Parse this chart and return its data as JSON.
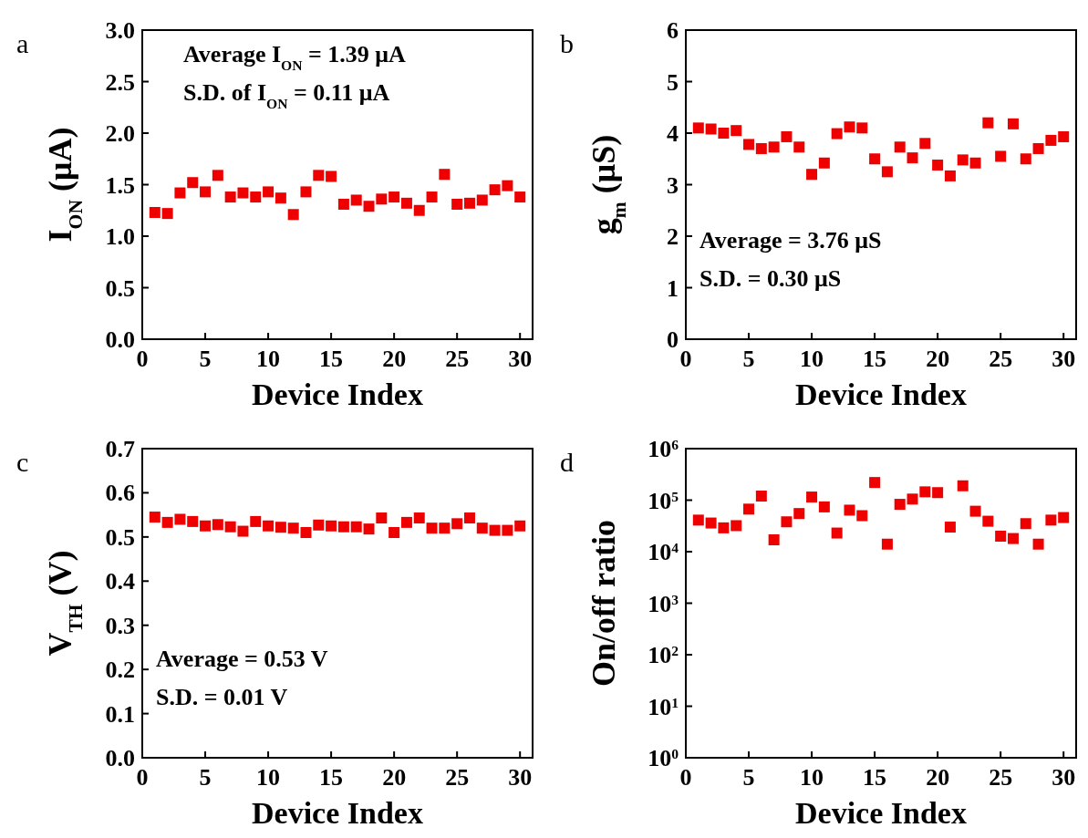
{
  "chart_data": [
    {
      "type": "scatter",
      "title": "a",
      "xlabel": "Device Index",
      "ylabel": "I$_{ON}$ (μA)",
      "marker": "square",
      "xlim": [
        0,
        31
      ],
      "xticks": [
        0,
        5,
        10,
        15,
        20,
        25,
        30
      ],
      "ylim": [
        0,
        3
      ],
      "yticks": [
        {
          "value": 0,
          "label": "0.0"
        },
        {
          "value": 0.5,
          "label": "0.5"
        },
        {
          "value": 1,
          "label": "1.0"
        },
        {
          "value": 1.5,
          "label": "1.5"
        },
        {
          "value": 2,
          "label": "2.0"
        },
        {
          "value": 2.5,
          "label": "2.5"
        },
        {
          "value": 3,
          "label": "3.0"
        }
      ],
      "annotations": [
        "Average I$_{ON}$ = 1.39 μA",
        "S.D. of I$_{ON}$ = 0.11 μA"
      ],
      "x": [
        1,
        2,
        3,
        4,
        5,
        6,
        7,
        8,
        9,
        10,
        11,
        12,
        13,
        14,
        15,
        16,
        17,
        18,
        19,
        20,
        21,
        22,
        23,
        24,
        25,
        26,
        27,
        28,
        29,
        30
      ],
      "series": [
        {
          "color": "#ee0000",
          "values": [
            1.23,
            1.22,
            1.42,
            1.52,
            1.43,
            1.59,
            1.38,
            1.42,
            1.38,
            1.43,
            1.37,
            1.21,
            1.43,
            1.59,
            1.58,
            1.31,
            1.35,
            1.29,
            1.36,
            1.38,
            1.32,
            1.25,
            1.38,
            1.6,
            1.31,
            1.32,
            1.35,
            1.45,
            1.49,
            1.38
          ]
        }
      ]
    },
    {
      "type": "scatter",
      "title": "b",
      "xlabel": "Device Index",
      "ylabel": "g$_{m}$ (μS)",
      "marker": "square",
      "xlim": [
        0,
        31
      ],
      "xticks": [
        0,
        5,
        10,
        15,
        20,
        25,
        30
      ],
      "ylim": [
        0,
        6
      ],
      "yticks": [
        0,
        1,
        2,
        3,
        4,
        5,
        6
      ],
      "annotations": [
        "Average = 3.76 μS",
        "S.D. = 0.30 μS"
      ],
      "x": [
        1,
        2,
        3,
        4,
        5,
        6,
        7,
        8,
        9,
        10,
        11,
        12,
        13,
        14,
        15,
        16,
        17,
        18,
        19,
        20,
        21,
        22,
        23,
        24,
        25,
        26,
        27,
        28,
        29,
        30
      ],
      "series": [
        {
          "color": "#ee0000",
          "values": [
            4.1,
            4.08,
            4.0,
            4.05,
            3.78,
            3.7,
            3.73,
            3.93,
            3.73,
            3.2,
            3.42,
            3.99,
            4.12,
            4.1,
            3.5,
            3.25,
            3.73,
            3.52,
            3.8,
            3.38,
            3.17,
            3.48,
            3.42,
            4.2,
            3.55,
            4.18,
            3.5,
            3.7,
            3.86,
            3.93
          ]
        }
      ]
    },
    {
      "type": "scatter",
      "title": "c",
      "xlabel": "Device Index",
      "ylabel": "V$_{TH}$ (V)",
      "marker": "square",
      "xlim": [
        0,
        31
      ],
      "xticks": [
        0,
        5,
        10,
        15,
        20,
        25,
        30
      ],
      "ylim": [
        0,
        0.7
      ],
      "yticks": [
        {
          "value": 0,
          "label": "0.0"
        },
        {
          "value": 0.1,
          "label": "0.1"
        },
        {
          "value": 0.2,
          "label": "0.2"
        },
        {
          "value": 0.3,
          "label": "0.3"
        },
        {
          "value": 0.4,
          "label": "0.4"
        },
        {
          "value": 0.5,
          "label": "0.5"
        },
        {
          "value": 0.6,
          "label": "0.6"
        },
        {
          "value": 0.7,
          "label": "0.7"
        }
      ],
      "annotations": [
        "Average = 0.53 V",
        "S.D.  = 0.01 V"
      ],
      "x": [
        1,
        2,
        3,
        4,
        5,
        6,
        7,
        8,
        9,
        10,
        11,
        12,
        13,
        14,
        15,
        16,
        17,
        18,
        19,
        20,
        21,
        22,
        23,
        24,
        25,
        26,
        27,
        28,
        29,
        30
      ],
      "series": [
        {
          "color": "#ee0000",
          "values": [
            0.545,
            0.533,
            0.54,
            0.535,
            0.525,
            0.528,
            0.523,
            0.513,
            0.535,
            0.525,
            0.522,
            0.52,
            0.51,
            0.527,
            0.525,
            0.523,
            0.523,
            0.518,
            0.543,
            0.51,
            0.533,
            0.543,
            0.52,
            0.52,
            0.53,
            0.543,
            0.52,
            0.515,
            0.515,
            0.525
          ]
        }
      ]
    },
    {
      "type": "scatter",
      "title": "d",
      "xlabel": "Device Index",
      "ylabel": "On/off ratio",
      "marker": "square",
      "log": "y",
      "xlim": [
        0,
        31
      ],
      "xticks": [
        0,
        5,
        10,
        15,
        20,
        25,
        30
      ],
      "ylim": [
        1,
        1000000
      ],
      "yticks": [
        {
          "value": 1,
          "label": "10$^{0}$"
        },
        {
          "value": 10,
          "label": "10$^{1}$"
        },
        {
          "value": 100,
          "label": "10$^{2}$"
        },
        {
          "value": 1000,
          "label": "10$^{3}$"
        },
        {
          "value": 10000,
          "label": "10$^{4}$"
        },
        {
          "value": 100000,
          "label": "10$^{5}$"
        },
        {
          "value": 1000000,
          "label": "10$^{6}$"
        }
      ],
      "x": [
        1,
        2,
        3,
        4,
        5,
        6,
        7,
        8,
        9,
        10,
        11,
        12,
        13,
        14,
        15,
        16,
        17,
        18,
        19,
        20,
        21,
        22,
        23,
        24,
        25,
        26,
        27,
        28,
        29,
        30
      ],
      "series": [
        {
          "color": "#ee0000",
          "values": [
            41000,
            36000,
            29000,
            32000,
            67000,
            120000,
            17000,
            38000,
            55000,
            115000,
            74000,
            23000,
            64000,
            50000,
            220000,
            14000,
            83000,
            105000,
            145000,
            140000,
            30000,
            190000,
            61000,
            39000,
            20000,
            18000,
            35000,
            14000,
            41000,
            46000
          ]
        }
      ]
    }
  ]
}
